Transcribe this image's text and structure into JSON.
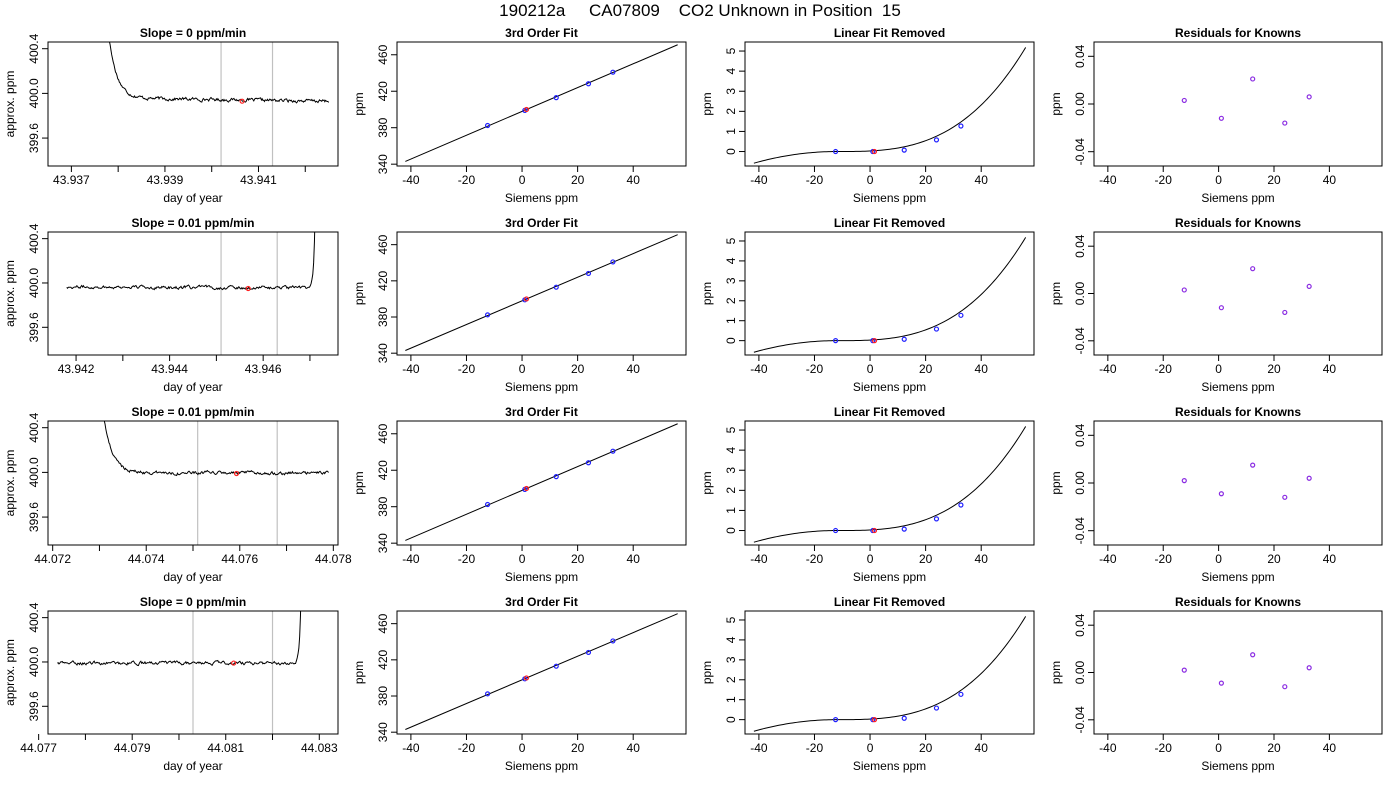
{
  "page_title": "190212a     CA07809    CO2 Unknown in Position  15",
  "colors": {
    "line": "#000000",
    "frame": "#000000",
    "vertical_marker": "#c0c0c0",
    "known_point": "#1f1fff",
    "residual_point": "#8a2be2",
    "unknown_point": "#ff2020"
  },
  "chart_data": [
    {
      "type": "line",
      "row": 0,
      "col": 0,
      "title": "Slope =  0  ppm/min",
      "xlabel": "day of year",
      "ylabel": "approx. ppm",
      "xlim": [
        43.9365,
        43.9427
      ],
      "ylim": [
        399.35,
        400.46
      ],
      "x_ticks": [
        "43.937",
        "43.939",
        "43.941"
      ],
      "x_minor_ticks": [
        43.938,
        43.94,
        43.942
      ],
      "y_ticks": [
        "399.6",
        "400.0",
        "400.4"
      ],
      "vertical_markers": [
        43.9402,
        43.9413
      ],
      "trace_start": 43.9376,
      "trace_end": 43.9425,
      "spike": "start",
      "spike_width": 0.00055,
      "baseline": 399.945,
      "noise": 0.012,
      "drift": -0.03,
      "unknown_point": {
        "x": 43.94065,
        "y": 399.93
      }
    },
    {
      "type": "line",
      "row": 1,
      "col": 0,
      "title": "Slope =  0.01  ppm/min",
      "xlabel": "day of year",
      "ylabel": "approx. ppm",
      "xlim": [
        43.9414,
        43.9476
      ],
      "ylim": [
        399.35,
        400.46
      ],
      "x_ticks": [
        "43.942",
        "43.944",
        "43.946"
      ],
      "x_minor_ticks": [
        43.943,
        43.945,
        43.947
      ],
      "y_ticks": [
        "399.6",
        "400.0",
        "400.4"
      ],
      "vertical_markers": [
        43.9451,
        43.9463
      ],
      "trace_start": 43.9418,
      "trace_end": 43.94715,
      "spike": "end",
      "spike_width": 0.00012,
      "baseline": 399.96,
      "noise": 0.012,
      "drift": -0.01,
      "unknown_point": {
        "x": 43.94568,
        "y": 399.95
      }
    },
    {
      "type": "line",
      "row": 2,
      "col": 0,
      "title": "Slope =  0.01  ppm/min",
      "xlabel": "day of year",
      "ylabel": "approx. ppm",
      "xlim": [
        44.0719,
        44.0781
      ],
      "ylim": [
        399.35,
        400.46
      ],
      "x_ticks": [
        "44.072",
        "44.074",
        "44.076",
        "44.078"
      ],
      "x_minor_ticks": [
        44.073,
        44.075,
        44.077
      ],
      "y_ticks": [
        "399.6",
        "400.0",
        "400.4"
      ],
      "vertical_markers": [
        44.0751,
        44.0768
      ],
      "trace_start": 44.07285,
      "trace_end": 44.0779,
      "spike": "start",
      "spike_width": 0.0006,
      "baseline": 399.995,
      "noise": 0.012,
      "drift": 0.0,
      "unknown_point": {
        "x": 44.07593,
        "y": 399.99
      }
    },
    {
      "type": "line",
      "row": 3,
      "col": 0,
      "title": "Slope =  0  ppm/min",
      "xlabel": "day of year",
      "ylabel": "approx. ppm",
      "xlim": [
        44.0772,
        44.0834
      ],
      "ylim": [
        399.35,
        400.46
      ],
      "x_ticks": [
        "44.077",
        "44.079",
        "44.081",
        "44.083"
      ],
      "x_minor_ticks": [
        44.078,
        44.08,
        44.082
      ],
      "y_ticks": [
        "399.6",
        "400.0",
        "400.4"
      ],
      "vertical_markers": [
        44.0803,
        44.082
      ],
      "trace_start": 44.0774,
      "trace_end": 44.08265,
      "spike": "end",
      "spike_width": 0.00012,
      "baseline": 399.99,
      "noise": 0.012,
      "drift": 0.0,
      "unknown_point": {
        "x": 44.08117,
        "y": 399.99
      }
    },
    {
      "type": "line",
      "row": 0,
      "col": 1,
      "title": "3rd Order Fit",
      "xlabel": "Siemens ppm",
      "ylabel": "ppm",
      "xlim": [
        -45,
        59
      ],
      "ylim": [
        338,
        474
      ],
      "x_ticks": [
        "-40",
        "-20",
        "0",
        "20",
        "40"
      ],
      "y_ticks": [
        "340",
        "380",
        "420",
        "460"
      ],
      "line": {
        "x": [
          -42,
          56
        ],
        "y": [
          343,
          471
        ]
      },
      "known_points": {
        "x": [
          -12.4,
          1.0,
          12.3,
          23.9,
          32.7
        ],
        "y": [
          382.4,
          399.0,
          413.0,
          428.2,
          440.9
        ]
      },
      "unknown_point": {
        "x": 1.6,
        "y": 400.0
      }
    },
    {
      "type": "line",
      "row": 1,
      "col": 1,
      "title": "3rd Order Fit",
      "xlabel": "Siemens ppm",
      "ylabel": "ppm",
      "xlim": [
        -45,
        59
      ],
      "ylim": [
        338,
        474
      ],
      "x_ticks": [
        "-40",
        "-20",
        "0",
        "20",
        "40"
      ],
      "y_ticks": [
        "340",
        "380",
        "420",
        "460"
      ],
      "line": {
        "x": [
          -42,
          56
        ],
        "y": [
          343,
          471
        ]
      },
      "known_points": {
        "x": [
          -12.4,
          1.0,
          12.3,
          23.9,
          32.7
        ],
        "y": [
          382.4,
          399.0,
          413.0,
          428.2,
          440.9
        ]
      },
      "unknown_point": {
        "x": 1.6,
        "y": 400.0
      }
    },
    {
      "type": "line",
      "row": 2,
      "col": 1,
      "title": "3rd Order Fit",
      "xlabel": "Siemens ppm",
      "ylabel": "ppm",
      "xlim": [
        -45,
        59
      ],
      "ylim": [
        338,
        474
      ],
      "x_ticks": [
        "-40",
        "-20",
        "0",
        "20",
        "40"
      ],
      "y_ticks": [
        "340",
        "380",
        "420",
        "460"
      ],
      "line": {
        "x": [
          -42,
          56
        ],
        "y": [
          343,
          471
        ]
      },
      "known_points": {
        "x": [
          -12.4,
          1.0,
          12.3,
          23.9,
          32.7
        ],
        "y": [
          382.4,
          399.0,
          413.0,
          428.2,
          440.9
        ]
      },
      "unknown_point": {
        "x": 1.6,
        "y": 400.0
      }
    },
    {
      "type": "line",
      "row": 3,
      "col": 1,
      "title": "3rd Order Fit",
      "xlabel": "Siemens ppm",
      "ylabel": "ppm",
      "xlim": [
        -45,
        59
      ],
      "ylim": [
        338,
        474
      ],
      "x_ticks": [
        "-40",
        "-20",
        "0",
        "20",
        "40"
      ],
      "y_ticks": [
        "340",
        "380",
        "420",
        "460"
      ],
      "line": {
        "x": [
          -42,
          56
        ],
        "y": [
          343,
          471
        ]
      },
      "known_points": {
        "x": [
          -12.4,
          1.0,
          12.3,
          23.9,
          32.7
        ],
        "y": [
          382.4,
          399.0,
          413.0,
          428.2,
          440.9
        ]
      },
      "unknown_point": {
        "x": 1.6,
        "y": 400.0
      }
    },
    {
      "type": "line",
      "row": 0,
      "col": 2,
      "title": "Linear Fit Removed",
      "xlabel": "Siemens ppm",
      "ylabel": "ppm",
      "xlim": [
        -45,
        59
      ],
      "ylim": [
        -0.72,
        5.45
      ],
      "x_ticks": [
        "-40",
        "-20",
        "0",
        "20",
        "40"
      ],
      "y_ticks": [
        "0",
        "1",
        "2",
        "3",
        "4",
        "5"
      ],
      "curve": {
        "x_start": -41.8,
        "x_end": 56,
        "y_start": -0.58,
        "y_end": 5.18,
        "x_flat": -12
      },
      "known_points": {
        "x": [
          -12.4,
          1.0,
          12.3,
          23.9,
          32.7
        ],
        "y": [
          0.0,
          0.0,
          0.07,
          0.58,
          1.27
        ]
      },
      "unknown_point": {
        "x": 1.6,
        "y": 0.0
      }
    },
    {
      "type": "line",
      "row": 1,
      "col": 2,
      "title": "Linear Fit Removed",
      "xlabel": "Siemens ppm",
      "ylabel": "ppm",
      "xlim": [
        -45,
        59
      ],
      "ylim": [
        -0.72,
        5.45
      ],
      "x_ticks": [
        "-40",
        "-20",
        "0",
        "20",
        "40"
      ],
      "y_ticks": [
        "0",
        "1",
        "2",
        "3",
        "4",
        "5"
      ],
      "curve": {
        "x_start": -41.8,
        "x_end": 56,
        "y_start": -0.58,
        "y_end": 5.18,
        "x_flat": -12
      },
      "known_points": {
        "x": [
          -12.4,
          1.0,
          12.3,
          23.9,
          32.7
        ],
        "y": [
          0.0,
          0.0,
          0.07,
          0.58,
          1.27
        ]
      },
      "unknown_point": {
        "x": 1.6,
        "y": 0.0
      }
    },
    {
      "type": "line",
      "row": 2,
      "col": 2,
      "title": "Linear Fit Removed",
      "xlabel": "Siemens ppm",
      "ylabel": "ppm",
      "xlim": [
        -45,
        59
      ],
      "ylim": [
        -0.72,
        5.45
      ],
      "x_ticks": [
        "-40",
        "-20",
        "0",
        "20",
        "40"
      ],
      "y_ticks": [
        "0",
        "1",
        "2",
        "3",
        "4",
        "5"
      ],
      "curve": {
        "x_start": -41.8,
        "x_end": 56,
        "y_start": -0.58,
        "y_end": 5.18,
        "x_flat": -12
      },
      "known_points": {
        "x": [
          -12.4,
          1.0,
          12.3,
          23.9,
          32.7
        ],
        "y": [
          0.0,
          0.0,
          0.07,
          0.58,
          1.27
        ]
      },
      "unknown_point": {
        "x": 1.6,
        "y": 0.0
      }
    },
    {
      "type": "line",
      "row": 3,
      "col": 2,
      "title": "Linear Fit Removed",
      "xlabel": "Siemens ppm",
      "ylabel": "ppm",
      "xlim": [
        -45,
        59
      ],
      "ylim": [
        -0.72,
        5.45
      ],
      "x_ticks": [
        "-40",
        "-20",
        "0",
        "20",
        "40"
      ],
      "y_ticks": [
        "0",
        "1",
        "2",
        "3",
        "4",
        "5"
      ],
      "curve": {
        "x_start": -41.8,
        "x_end": 56,
        "y_start": -0.58,
        "y_end": 5.18,
        "x_flat": -12
      },
      "known_points": {
        "x": [
          -12.4,
          1.0,
          12.3,
          23.9,
          32.7
        ],
        "y": [
          0.0,
          0.0,
          0.07,
          0.58,
          1.27
        ]
      },
      "unknown_point": {
        "x": 1.6,
        "y": 0.0
      }
    },
    {
      "type": "scatter",
      "row": 0,
      "col": 3,
      "title": "Residuals for Knowns",
      "xlabel": "Siemens ppm",
      "ylabel": "ppm",
      "xlim": [
        -45,
        59
      ],
      "ylim": [
        -0.052,
        0.052
      ],
      "x_ticks": [
        "-40",
        "-20",
        "0",
        "20",
        "40"
      ],
      "y_ticks": [
        "-0.04",
        "0.00",
        "0.04"
      ],
      "points": {
        "x": [
          -12.4,
          1.0,
          12.3,
          23.9,
          32.7
        ],
        "y": [
          0.003,
          -0.012,
          0.021,
          -0.016,
          0.006
        ]
      }
    },
    {
      "type": "scatter",
      "row": 1,
      "col": 3,
      "title": "Residuals for Knowns",
      "xlabel": "Siemens ppm",
      "ylabel": "ppm",
      "xlim": [
        -45,
        59
      ],
      "ylim": [
        -0.052,
        0.052
      ],
      "x_ticks": [
        "-40",
        "-20",
        "0",
        "20",
        "40"
      ],
      "y_ticks": [
        "-0.04",
        "0.00",
        "0.04"
      ],
      "points": {
        "x": [
          -12.4,
          1.0,
          12.3,
          23.9,
          32.7
        ],
        "y": [
          0.003,
          -0.012,
          0.021,
          -0.016,
          0.006
        ]
      }
    },
    {
      "type": "scatter",
      "row": 2,
      "col": 3,
      "title": "Residuals for Knowns",
      "xlabel": "Siemens ppm",
      "ylabel": "ppm",
      "xlim": [
        -45,
        59
      ],
      "ylim": [
        -0.052,
        0.052
      ],
      "x_ticks": [
        "-40",
        "-20",
        "0",
        "20",
        "40"
      ],
      "y_ticks": [
        "-0.04",
        "0.00",
        "0.04"
      ],
      "points": {
        "x": [
          -12.4,
          1.0,
          12.3,
          23.9,
          32.7
        ],
        "y": [
          0.002,
          -0.009,
          0.015,
          -0.012,
          0.004
        ]
      }
    },
    {
      "type": "scatter",
      "row": 3,
      "col": 3,
      "title": "Residuals for Knowns",
      "xlabel": "Siemens ppm",
      "ylabel": "ppm",
      "xlim": [
        -45,
        59
      ],
      "ylim": [
        -0.052,
        0.052
      ],
      "x_ticks": [
        "-40",
        "-20",
        "0",
        "20",
        "40"
      ],
      "y_ticks": [
        "-0.04",
        "0.00",
        "0.04"
      ],
      "points": {
        "x": [
          -12.4,
          1.0,
          12.3,
          23.9,
          32.7
        ],
        "y": [
          0.002,
          -0.009,
          0.015,
          -0.012,
          0.004
        ]
      }
    }
  ]
}
